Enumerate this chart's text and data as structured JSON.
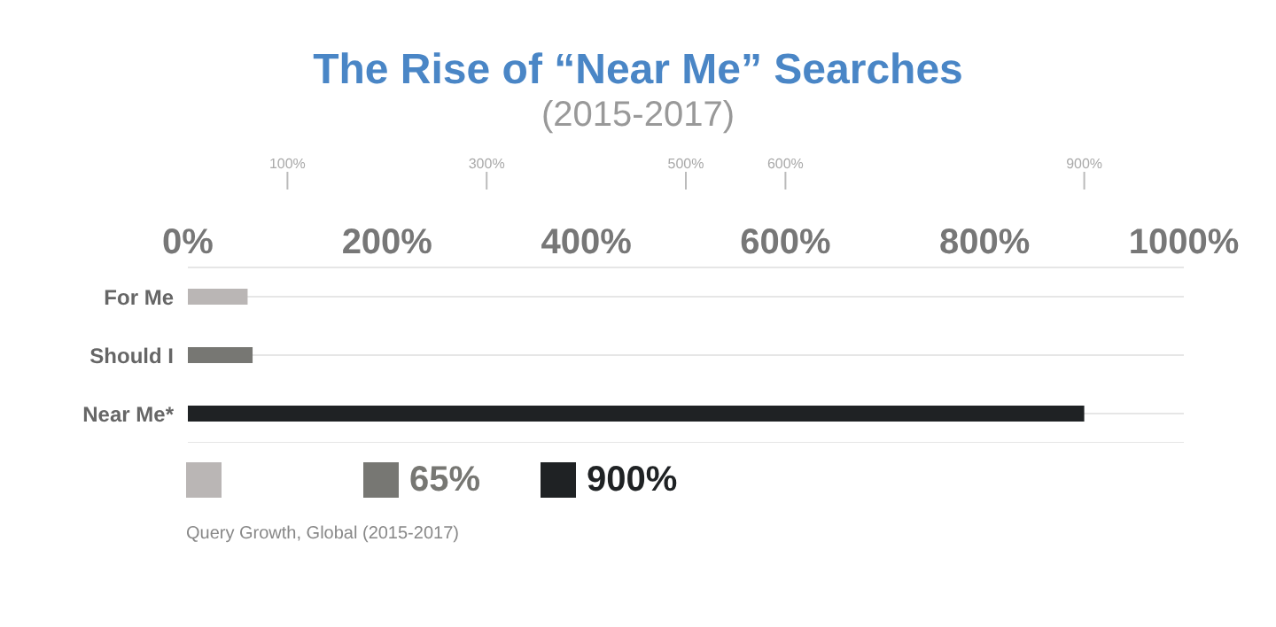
{
  "chart_data": {
    "type": "bar",
    "orientation": "horizontal",
    "stacked": true,
    "title": "The Rise of “Near Me” Searches",
    "subtitle": "(2015-2017)",
    "categories": [
      "For Me",
      "Should I",
      "Near Me*"
    ],
    "series": [
      {
        "color": "#bab6b5",
        "values": [
          60,
          null,
          null
        ]
      },
      {
        "name": "65%",
        "color": "#777773",
        "values": [
          null,
          65,
          null
        ]
      },
      {
        "name": "900%",
        "color": "#1f2224",
        "values": [
          null,
          null,
          900
        ]
      }
    ],
    "legend": "bottom",
    "xlim": [
      0,
      1000
    ],
    "xticks": [
      {
        "value": 0,
        "label": "0%"
      },
      {
        "value": 200,
        "label": "200%"
      },
      {
        "value": 400,
        "label": "400%"
      },
      {
        "value": 600,
        "label": "600%"
      },
      {
        "value": 800,
        "label": "800%"
      },
      {
        "value": 1000,
        "label": "1000%"
      }
    ],
    "x2lim": [
      0,
      1000
    ],
    "x2ticks": [
      {
        "value": 100,
        "label": "100%"
      },
      {
        "value": 300,
        "label": "300%"
      },
      {
        "value": 500,
        "label": "500%"
      },
      {
        "value": 600,
        "label": "600%"
      },
      {
        "value": 900,
        "label": "900%"
      }
    ],
    "grid": "y",
    "annotations": [
      "Query Growth, Global (2015-2017)"
    ]
  }
}
